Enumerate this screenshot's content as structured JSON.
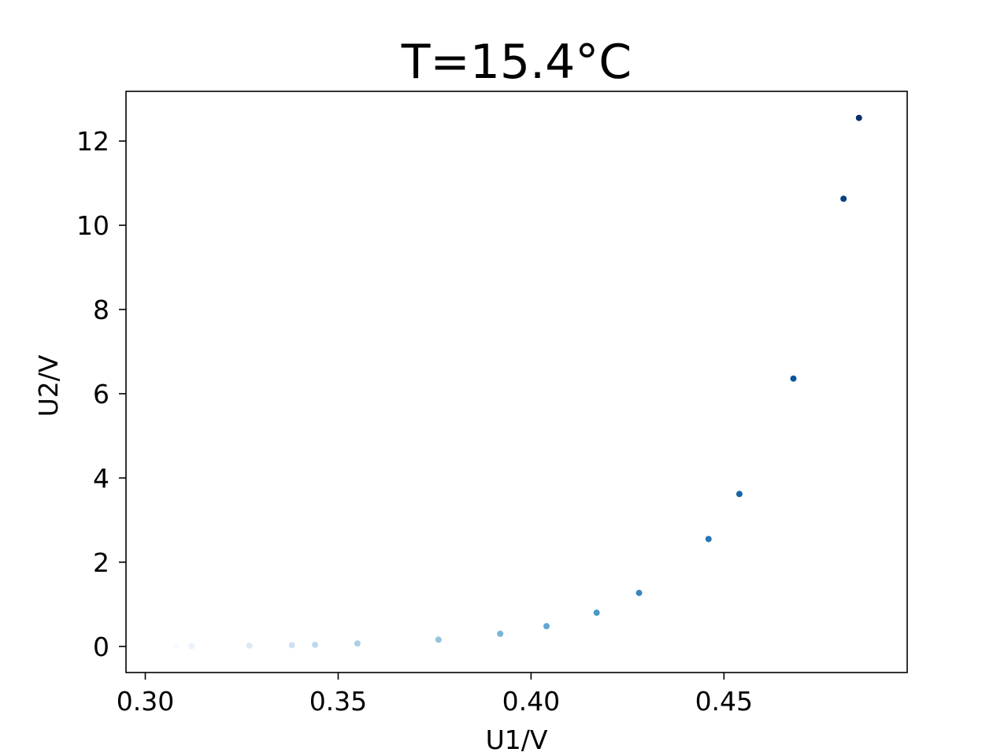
{
  "chart_data": {
    "type": "scatter",
    "title": "T=15.4°C",
    "xlabel": "U1/V",
    "ylabel": "U2/V",
    "xlim": [
      0.295,
      0.4975
    ],
    "ylim": [
      -0.62,
      13.18
    ],
    "xticks": [
      0.3,
      0.35,
      0.4,
      0.45
    ],
    "xtick_labels": [
      "0.30",
      "0.35",
      "0.40",
      "0.45"
    ],
    "yticks": [
      0,
      2,
      4,
      6,
      8,
      10,
      12
    ],
    "ytick_labels": [
      "0",
      "2",
      "4",
      "6",
      "8",
      "10",
      "12"
    ],
    "grid": false,
    "colormap": "Blues",
    "colormap_colors": [
      "#f7fbff",
      "#deebf7",
      "#c6dbef",
      "#9ecae1",
      "#6baed6",
      "#4292c6",
      "#2171b5",
      "#08519c",
      "#08306b"
    ],
    "series": [
      {
        "x": [
          0.308,
          0.312,
          0.327,
          0.338,
          0.344,
          0.355,
          0.376,
          0.392,
          0.404,
          0.417,
          0.428,
          0.446,
          0.454,
          0.468,
          0.481,
          0.485
        ],
        "y": [
          0.0,
          0.01,
          0.02,
          0.03,
          0.04,
          0.07,
          0.16,
          0.3,
          0.48,
          0.8,
          1.27,
          2.55,
          3.62,
          6.36,
          10.63,
          12.55
        ]
      }
    ]
  }
}
